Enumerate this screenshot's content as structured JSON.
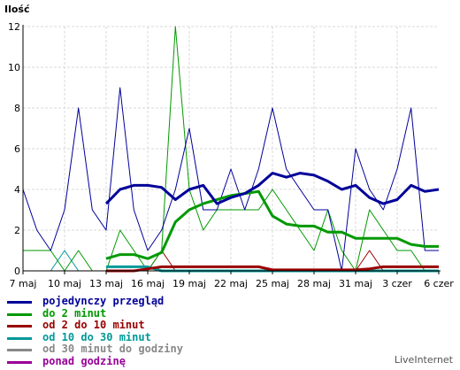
{
  "chart_data": {
    "type": "line",
    "ylabel": "Ilość",
    "ylim": [
      0,
      12
    ],
    "yticks": [
      "0",
      "2",
      "4",
      "6",
      "8",
      "10",
      "12"
    ],
    "x_tick_labels": [
      "7 maj",
      "10 maj",
      "13 maj",
      "16 maj",
      "19 maj",
      "22 maj",
      "25 maj",
      "28 maj",
      "31 maj",
      "3 czer",
      "6 czer"
    ],
    "x_count": 31,
    "grid": true,
    "series": [
      {
        "name": "pojedynczy przegląd",
        "color": "#000099",
        "width": 1,
        "values": [
          4,
          2,
          1,
          3,
          8,
          3,
          2,
          9,
          3,
          1,
          2,
          4,
          7,
          3,
          3,
          5,
          3,
          5,
          8,
          5,
          4,
          3,
          3,
          0,
          6,
          4,
          3,
          5,
          8,
          1,
          1
        ]
      },
      {
        "name": "do 2 minut",
        "color": "#009900",
        "width": 1,
        "values": [
          1,
          1,
          1,
          0,
          1,
          0,
          0,
          2,
          1,
          0,
          1,
          12,
          4,
          2,
          3,
          3,
          3,
          3,
          4,
          3,
          2,
          1,
          3,
          1,
          0,
          3,
          2,
          1,
          1,
          0,
          0
        ]
      },
      {
        "name": "od 2 do 10 minut",
        "color": "#990000",
        "width": 1,
        "values": [
          0,
          0,
          0,
          0,
          0,
          0,
          0,
          0,
          0,
          0,
          1,
          0,
          0,
          0,
          0,
          0,
          0,
          0,
          0,
          0,
          0,
          0,
          0,
          0,
          0,
          1,
          0,
          0,
          0,
          0,
          0
        ]
      },
      {
        "name": "od 10 do 30 minut",
        "color": "#009999",
        "width": 1,
        "values": [
          0,
          0,
          0,
          1,
          0,
          0,
          0,
          0,
          0,
          0,
          0,
          0,
          0,
          0,
          0,
          0,
          0,
          0,
          0,
          0,
          0,
          0,
          0,
          0,
          0,
          0,
          0,
          0,
          0,
          0,
          0
        ]
      },
      {
        "name": "od 30 minut do godziny",
        "color": "#888888",
        "width": 1,
        "values": [
          0,
          0,
          0,
          0,
          0,
          0,
          0,
          0,
          0,
          0,
          0,
          0,
          0,
          0,
          0,
          0,
          0,
          0,
          0,
          0,
          0,
          0,
          0,
          0,
          0,
          0,
          0,
          0,
          0,
          0,
          0
        ]
      },
      {
        "name": "ponad godzinę",
        "color": "#990099",
        "width": 1,
        "values": [
          0,
          0,
          0,
          0,
          0,
          0,
          0,
          0,
          0,
          0,
          0,
          0,
          0,
          0,
          0,
          0,
          0,
          0,
          0,
          0,
          0,
          0,
          0,
          0,
          0,
          0,
          0,
          0,
          0,
          0,
          0
        ]
      }
    ],
    "trend_lines": [
      {
        "color": "#000099",
        "width": 3,
        "start": 6,
        "values": [
          3.3,
          4,
          4.2,
          4.2,
          4.1,
          3.5,
          4.0,
          4.2,
          3.3,
          3.6,
          3.8,
          4.2,
          4.8,
          4.6,
          4.8,
          4.7,
          4.4,
          4.0,
          4.2,
          3.6,
          3.3,
          3.5,
          4.2,
          3.9,
          4.0
        ]
      },
      {
        "color": "#009900",
        "width": 3,
        "start": 6,
        "values": [
          0.6,
          0.8,
          0.8,
          0.6,
          0.9,
          2.4,
          3.0,
          3.3,
          3.5,
          3.7,
          3.8,
          3.9,
          2.7,
          2.3,
          2.2,
          2.2,
          1.9,
          1.9,
          1.6,
          1.6,
          1.6,
          1.6,
          1.3,
          1.2,
          1.2
        ]
      },
      {
        "color": "#990000",
        "width": 3,
        "start": 6,
        "values": [
          0,
          0,
          0,
          0.1,
          0.2,
          0.2,
          0.2,
          0.2,
          0.2,
          0.2,
          0.2,
          0.2,
          0.05,
          0.05,
          0.05,
          0.05,
          0.05,
          0.05,
          0.05,
          0.1,
          0.2,
          0.2,
          0.2,
          0.2,
          0.2
        ]
      },
      {
        "color": "#009999",
        "width": 3,
        "start": 6,
        "values": [
          0.2,
          0.2,
          0.2,
          0.2,
          0,
          0,
          0,
          0,
          0,
          0,
          0,
          0,
          0,
          0,
          0,
          0,
          0,
          0,
          0,
          0,
          0,
          0,
          0,
          0,
          0
        ]
      }
    ]
  },
  "brand": "LiveInternet"
}
